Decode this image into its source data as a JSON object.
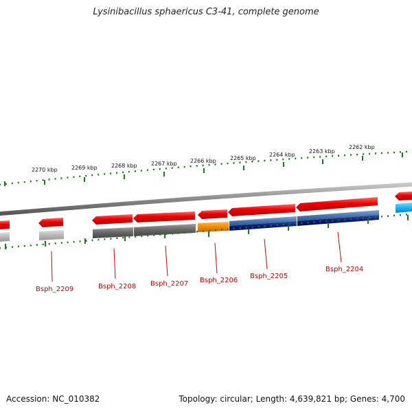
{
  "title": "Lysinibacillus sphaericus C3-41, complete genome",
  "footer": {
    "accession": "Accession: NC_010382",
    "summary": "Topology: circular; Length: 4,639,821 bp; Genes: 4,700"
  },
  "ticks": [
    "2270 kbp",
    "2269 kbp",
    "2268 kbp",
    "2267 kbp",
    "2266 kbp",
    "2265 kbp",
    "2264 kbp",
    "2263 kbp",
    "2262 kbp"
  ],
  "genes": [
    "Bsph_2209",
    "Bsph_2208",
    "Bsph_2207",
    "Bsph_2206",
    "Bsph_2205",
    "Bsph_2204"
  ],
  "colors": {
    "backbone": "#8a8a8a",
    "cds": "#ee0000",
    "cog_gray": "#666666",
    "cog_light_gray": "#b8b8b8",
    "cog_orange": "#f08c00",
    "cog_blue": "#4a78b0",
    "cog_navy": "#0a1a78",
    "cog_cyan": "#1fb4ee",
    "tick": "#1a7a1a",
    "label": "#cc0000"
  }
}
